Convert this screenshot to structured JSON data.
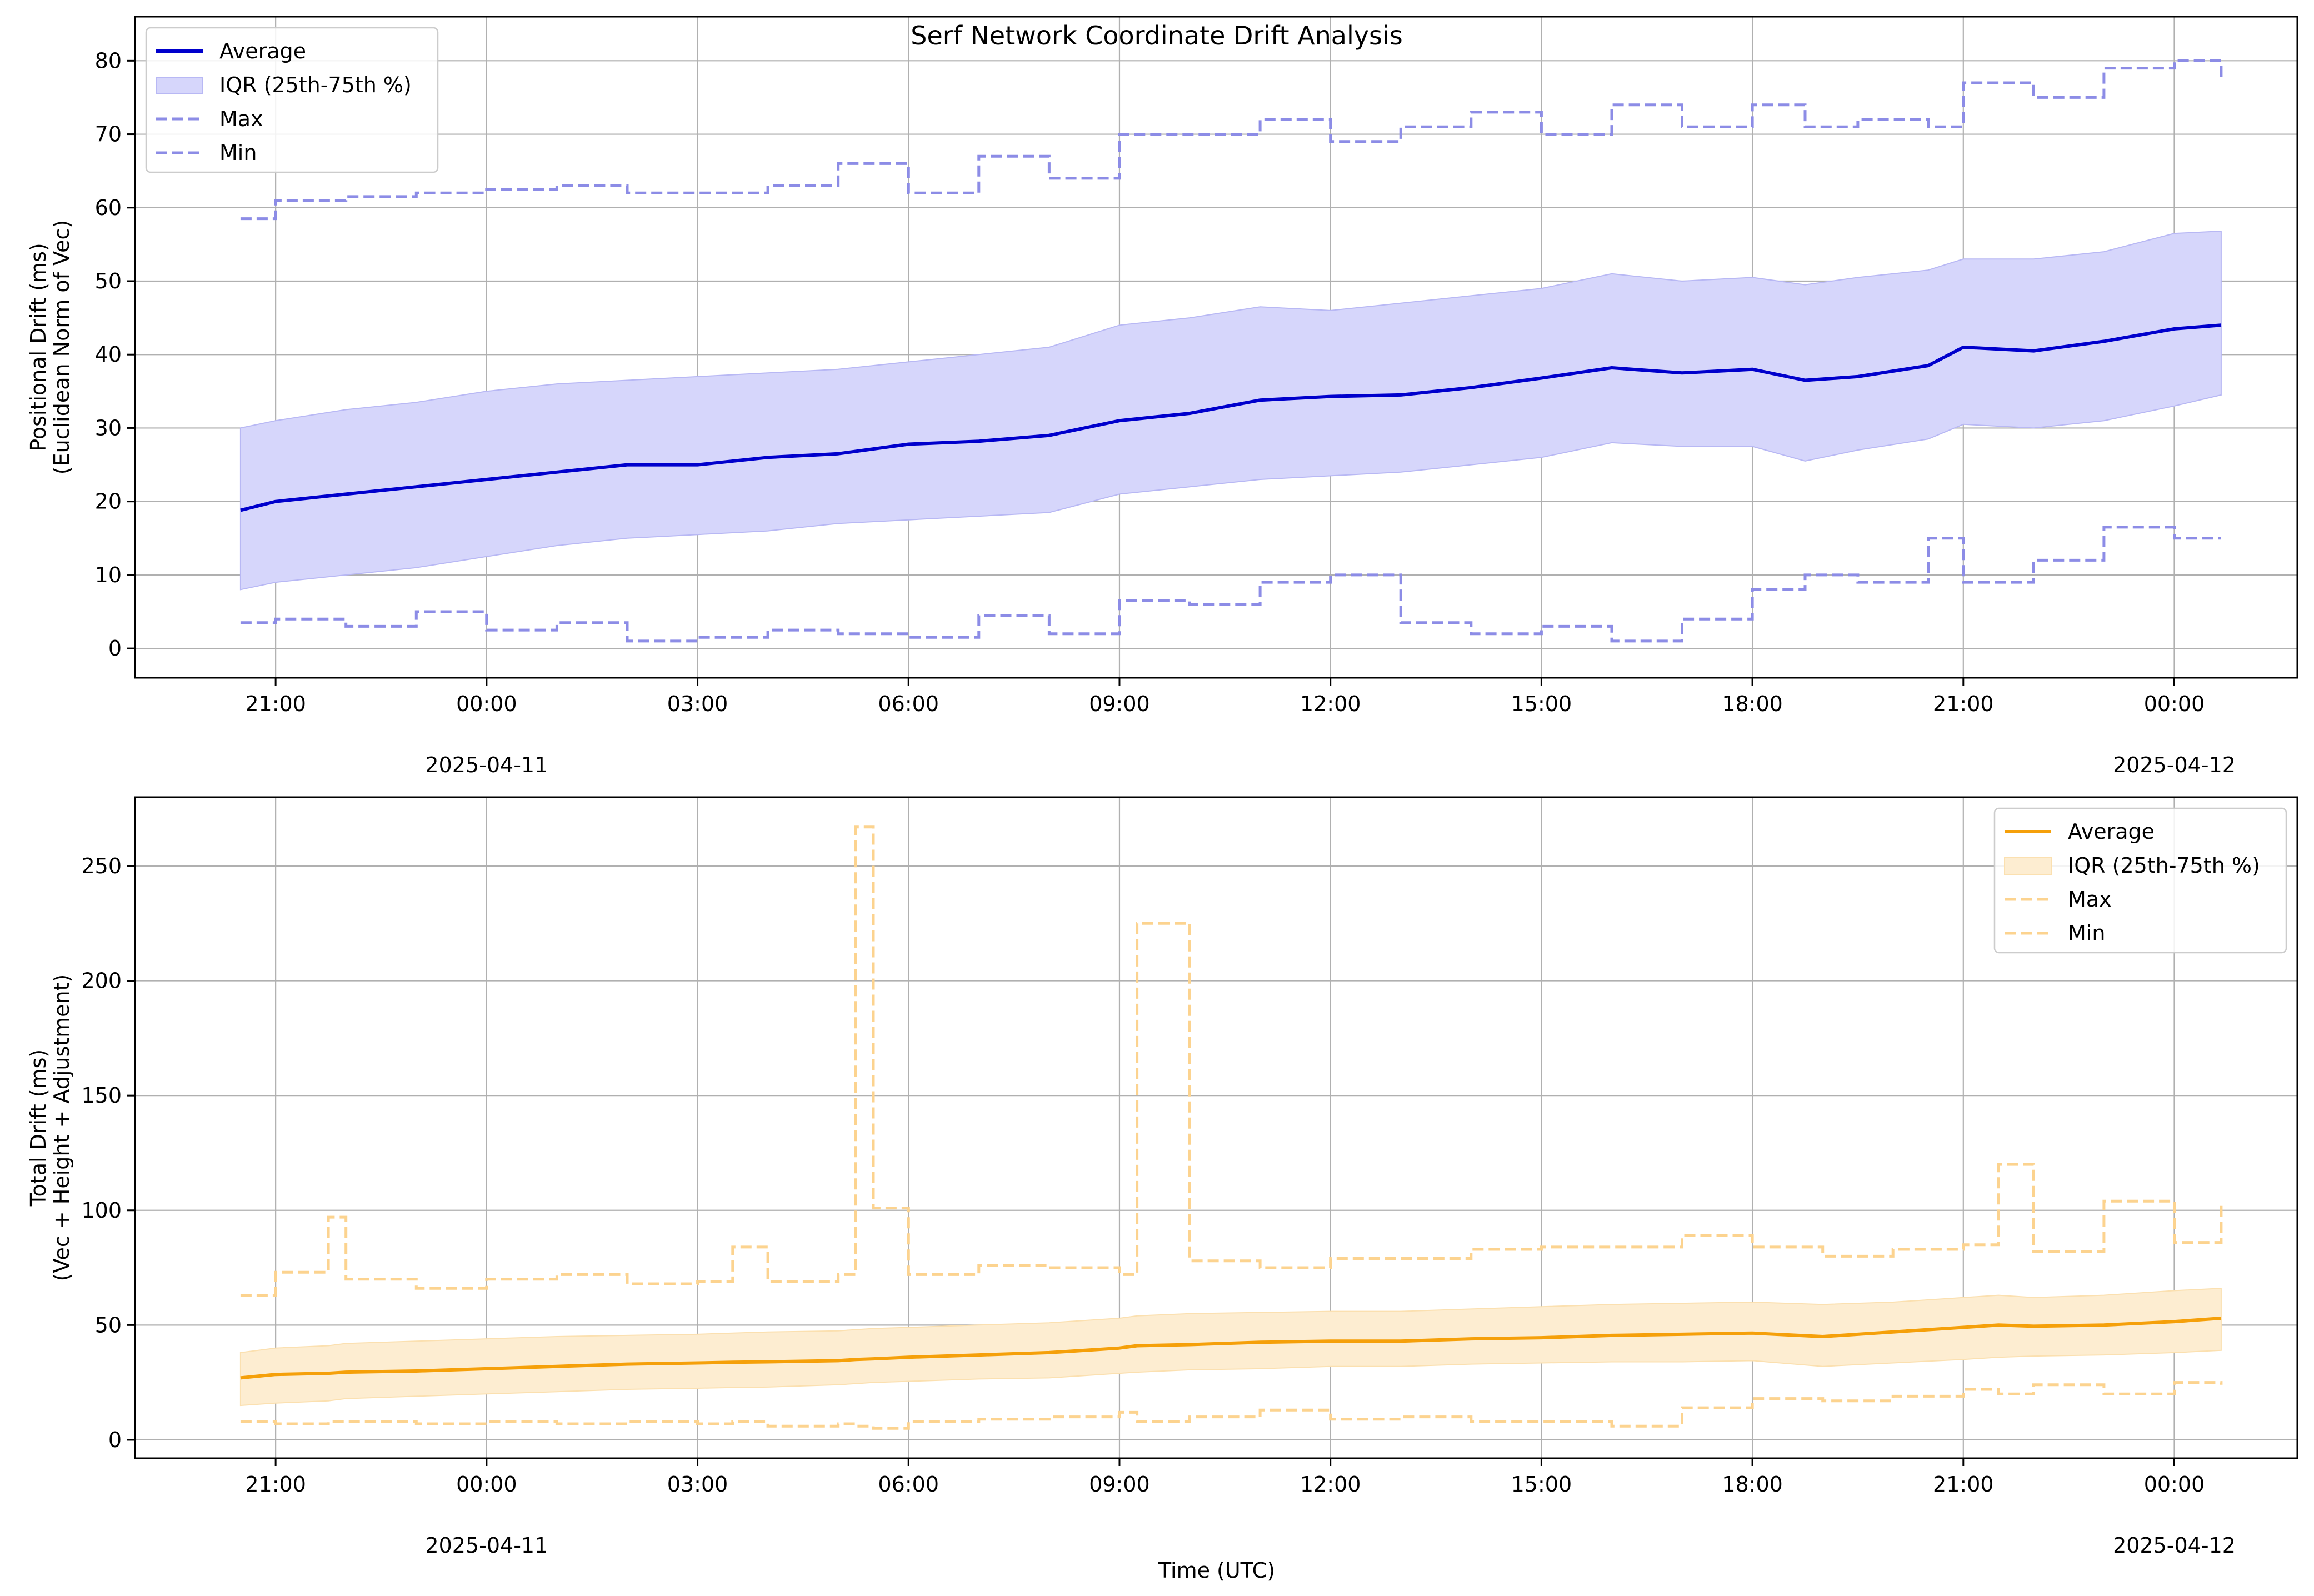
{
  "figure": {
    "suptitle": "Serf Network Coordinate Drift Analysis",
    "xlabel": "Time (UTC)"
  },
  "chart_data": [
    {
      "type": "line",
      "ylabel_line1": "Positional Drift (ms)",
      "ylabel_line2": "(Euclidean Norm of Vec)",
      "x_range": [
        "2025-04-10 19:00",
        "2025-04-12 01:45"
      ],
      "ylim": [
        -4,
        86
      ],
      "yticks": [
        0,
        10,
        20,
        30,
        40,
        50,
        60,
        70,
        80
      ],
      "x_ticks": [
        {
          "time": "2025-04-10 21:00",
          "label": "21:00",
          "sub": ""
        },
        {
          "time": "2025-04-11 00:00",
          "label": "00:00",
          "sub": "2025-04-11"
        },
        {
          "time": "2025-04-11 03:00",
          "label": "03:00",
          "sub": ""
        },
        {
          "time": "2025-04-11 06:00",
          "label": "06:00",
          "sub": ""
        },
        {
          "time": "2025-04-11 09:00",
          "label": "09:00",
          "sub": ""
        },
        {
          "time": "2025-04-11 12:00",
          "label": "12:00",
          "sub": ""
        },
        {
          "time": "2025-04-11 15:00",
          "label": "15:00",
          "sub": ""
        },
        {
          "time": "2025-04-11 18:00",
          "label": "18:00",
          "sub": ""
        },
        {
          "time": "2025-04-11 21:00",
          "label": "21:00",
          "sub": ""
        },
        {
          "time": "2025-04-12 00:00",
          "label": "00:00",
          "sub": "2025-04-12"
        }
      ],
      "grid": true,
      "legend": "top-left",
      "colors": {
        "avg": "#0000cc",
        "band": "#d6d6fb",
        "bandEdge": "#b8b8f4",
        "dashed": "#8c8ce6"
      },
      "legend_labels": {
        "avg": "Average",
        "iqr": "IQR (25th-75th %)",
        "max": "Max",
        "min": "Min"
      },
      "series": {
        "time": [
          "2025-04-10 20:30",
          "2025-04-10 21:00",
          "2025-04-10 22:00",
          "2025-04-10 23:00",
          "2025-04-11 00:00",
          "2025-04-11 01:00",
          "2025-04-11 02:00",
          "2025-04-11 03:00",
          "2025-04-11 04:00",
          "2025-04-11 05:00",
          "2025-04-11 06:00",
          "2025-04-11 07:00",
          "2025-04-11 08:00",
          "2025-04-11 09:00",
          "2025-04-11 10:00",
          "2025-04-11 11:00",
          "2025-04-11 12:00",
          "2025-04-11 13:00",
          "2025-04-11 14:00",
          "2025-04-11 15:00",
          "2025-04-11 16:00",
          "2025-04-11 17:00",
          "2025-04-11 18:00",
          "2025-04-11 18:45",
          "2025-04-11 19:30",
          "2025-04-11 20:30",
          "2025-04-11 21:00",
          "2025-04-11 22:00",
          "2025-04-11 23:00",
          "2025-04-12 00:00",
          "2025-04-12 00:40"
        ],
        "average": [
          18.8,
          20.0,
          21.0,
          22.0,
          23.0,
          24.0,
          25.0,
          25.0,
          26.0,
          26.5,
          27.8,
          28.2,
          29.0,
          31.0,
          32.0,
          33.8,
          34.3,
          34.5,
          35.5,
          36.8,
          38.2,
          37.5,
          38.0,
          36.5,
          37.0,
          38.5,
          41.0,
          40.5,
          41.8,
          43.5,
          44.0
        ],
        "q25": [
          8.0,
          9.0,
          10.0,
          11.0,
          12.5,
          14.0,
          15.0,
          15.5,
          16.0,
          17.0,
          17.5,
          18.0,
          18.5,
          21.0,
          22.0,
          23.0,
          23.5,
          24.0,
          25.0,
          26.0,
          28.0,
          27.5,
          27.5,
          25.5,
          27.0,
          28.5,
          30.5,
          30.0,
          31.0,
          33.0,
          34.5
        ],
        "q75": [
          30.0,
          31.0,
          32.5,
          33.5,
          35.0,
          36.0,
          36.5,
          37.0,
          37.5,
          38.0,
          39.0,
          40.0,
          41.0,
          44.0,
          45.0,
          46.5,
          46.0,
          47.0,
          48.0,
          49.0,
          51.0,
          50.0,
          50.5,
          49.5,
          50.5,
          51.5,
          53.0,
          53.0,
          54.0,
          56.5,
          56.8
        ],
        "max": [
          58.5,
          61.0,
          61.5,
          62.0,
          62.5,
          63.0,
          62.0,
          62.0,
          63.0,
          66.0,
          62.0,
          67.0,
          64.0,
          70.0,
          70.0,
          72.0,
          69.0,
          71.0,
          73.0,
          70.0,
          74.0,
          71.0,
          74.0,
          71.0,
          72.0,
          71.0,
          77.0,
          75.0,
          79.0,
          80.0,
          77.5
        ],
        "min": [
          3.5,
          4.0,
          3.0,
          5.0,
          2.5,
          3.5,
          1.0,
          1.5,
          2.5,
          2.0,
          1.5,
          4.5,
          2.0,
          6.5,
          6.0,
          9.0,
          10.0,
          3.5,
          2.0,
          3.0,
          1.0,
          4.0,
          8.0,
          10.0,
          9.0,
          15.0,
          9.0,
          12.0,
          16.5,
          15.0,
          15.0
        ]
      }
    },
    {
      "type": "line",
      "ylabel_line1": "Total Drift (ms)",
      "ylabel_line2": "(Vec + Height + Adjustment)",
      "x_range": [
        "2025-04-10 19:00",
        "2025-04-12 01:45"
      ],
      "ylim": [
        -8,
        280
      ],
      "yticks": [
        0,
        50,
        100,
        150,
        200,
        250
      ],
      "x_ticks": [
        {
          "time": "2025-04-10 21:00",
          "label": "21:00",
          "sub": ""
        },
        {
          "time": "2025-04-11 00:00",
          "label": "00:00",
          "sub": "2025-04-11"
        },
        {
          "time": "2025-04-11 03:00",
          "label": "03:00",
          "sub": ""
        },
        {
          "time": "2025-04-11 06:00",
          "label": "06:00",
          "sub": ""
        },
        {
          "time": "2025-04-11 09:00",
          "label": "09:00",
          "sub": ""
        },
        {
          "time": "2025-04-11 12:00",
          "label": "12:00",
          "sub": ""
        },
        {
          "time": "2025-04-11 15:00",
          "label": "15:00",
          "sub": ""
        },
        {
          "time": "2025-04-11 18:00",
          "label": "18:00",
          "sub": ""
        },
        {
          "time": "2025-04-11 21:00",
          "label": "21:00",
          "sub": ""
        },
        {
          "time": "2025-04-12 00:00",
          "label": "00:00",
          "sub": "2025-04-12"
        }
      ],
      "grid": true,
      "legend": "top-right",
      "colors": {
        "avg": "#f5a00a",
        "band": "#fdedd1",
        "bandEdge": "#fbe0b0",
        "dashed": "#fcd38f"
      },
      "legend_labels": {
        "avg": "Average",
        "iqr": "IQR (25th-75th %)",
        "max": "Max",
        "min": "Min"
      },
      "series": {
        "time": [
          "2025-04-10 20:30",
          "2025-04-10 21:00",
          "2025-04-10 21:45",
          "2025-04-10 22:00",
          "2025-04-10 23:00",
          "2025-04-11 00:00",
          "2025-04-11 01:00",
          "2025-04-11 02:00",
          "2025-04-11 03:00",
          "2025-04-11 03:30",
          "2025-04-11 04:00",
          "2025-04-11 05:00",
          "2025-04-11 05:15",
          "2025-04-11 05:30",
          "2025-04-11 06:00",
          "2025-04-11 07:00",
          "2025-04-11 08:00",
          "2025-04-11 09:00",
          "2025-04-11 09:15",
          "2025-04-11 10:00",
          "2025-04-11 11:00",
          "2025-04-11 12:00",
          "2025-04-11 13:00",
          "2025-04-11 14:00",
          "2025-04-11 15:00",
          "2025-04-11 16:00",
          "2025-04-11 17:00",
          "2025-04-11 18:00",
          "2025-04-11 19:00",
          "2025-04-11 20:00",
          "2025-04-11 21:00",
          "2025-04-11 21:30",
          "2025-04-11 22:00",
          "2025-04-11 23:00",
          "2025-04-12 00:00",
          "2025-04-12 00:40"
        ],
        "average": [
          27,
          28.5,
          29,
          29.5,
          30,
          31,
          32,
          33,
          33.5,
          33.8,
          34,
          34.5,
          35,
          35.3,
          36,
          37,
          38,
          40,
          41,
          41.5,
          42.5,
          43,
          43,
          44,
          44.5,
          45.5,
          46,
          46.5,
          45,
          47,
          49,
          50,
          49.5,
          50,
          51.5,
          53
        ],
        "q25": [
          15,
          16,
          17,
          18,
          19,
          20,
          21,
          22,
          22.5,
          22.8,
          23,
          24,
          24.5,
          25,
          25.5,
          26.5,
          27,
          29,
          29.5,
          30.5,
          31,
          32,
          32,
          33,
          33.5,
          34,
          34,
          34.5,
          32,
          33.5,
          35,
          36,
          36.5,
          37,
          38,
          39
        ],
        "q75": [
          38,
          40,
          41,
          42,
          43,
          44,
          45,
          45.5,
          46,
          46.5,
          47,
          47.5,
          48,
          48.5,
          49,
          50,
          51,
          53,
          54,
          55,
          55.5,
          56,
          56,
          57,
          58,
          59,
          59.5,
          60,
          59,
          60,
          62,
          63,
          62,
          63,
          65,
          66
        ],
        "max": [
          63,
          73,
          97,
          70,
          66,
          70,
          72,
          68,
          69,
          84,
          69,
          72,
          267,
          101,
          72,
          76,
          75,
          72,
          225,
          78,
          75,
          79,
          79,
          83,
          84,
          84,
          89,
          84,
          80,
          83,
          85,
          120,
          82,
          104,
          86,
          104
        ],
        "min": [
          8,
          7,
          8,
          8,
          7,
          8,
          7,
          8,
          7,
          8,
          6,
          7,
          6,
          5,
          8,
          9,
          10,
          12,
          8,
          10,
          13,
          9,
          10,
          8,
          8,
          6,
          14,
          18,
          17,
          19,
          22,
          20,
          24,
          20,
          25,
          24
        ]
      }
    }
  ]
}
